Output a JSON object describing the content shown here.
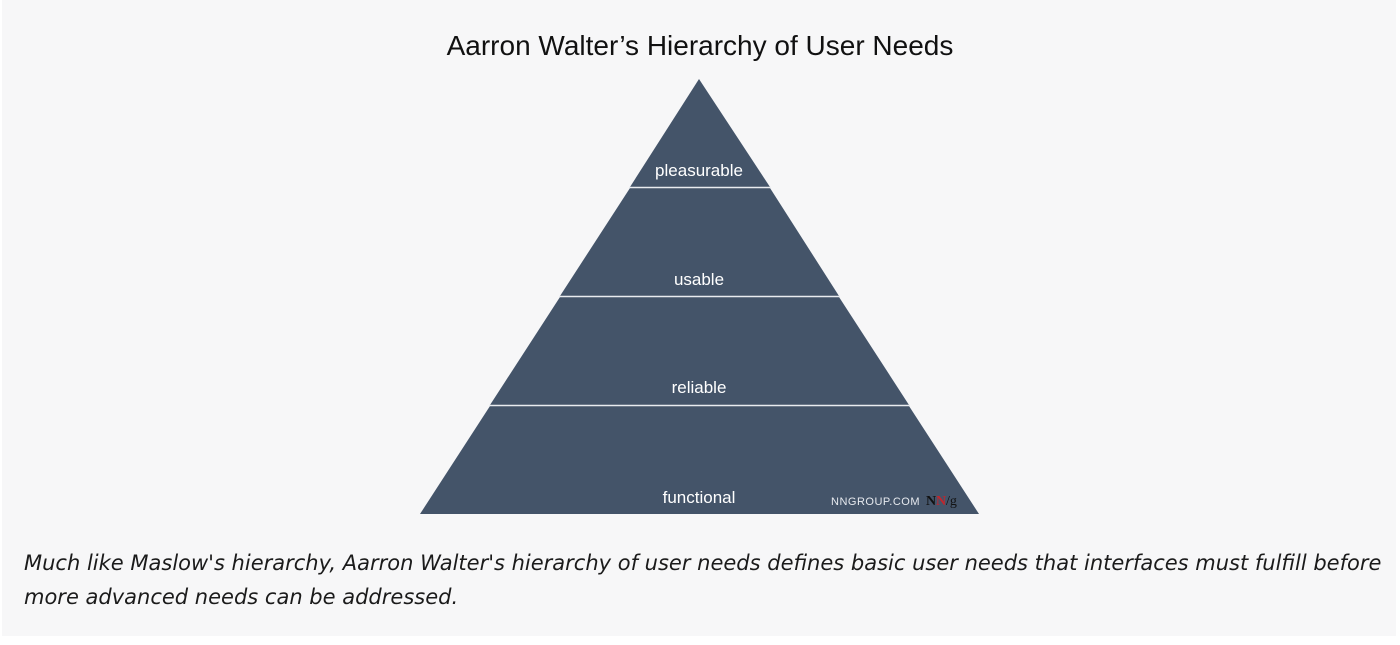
{
  "figure": {
    "title": "Aarron Walter’s Hierarchy of User Needs",
    "tiers": [
      {
        "label": "pleasurable"
      },
      {
        "label": "usable"
      },
      {
        "label": "reliable"
      },
      {
        "label": "functional"
      }
    ],
    "colors": {
      "tier_fill": "#445469",
      "divider": "#e9ecf0",
      "background": "#f7f7f8"
    },
    "watermark": {
      "site": "NNGROUP.COM",
      "logo": "NN/g"
    }
  },
  "caption": "Much like Maslow's hierarchy, Aarron Walter's hierarchy of user needs defines basic user needs that interfaces must fulfill before more advanced needs can be addressed."
}
